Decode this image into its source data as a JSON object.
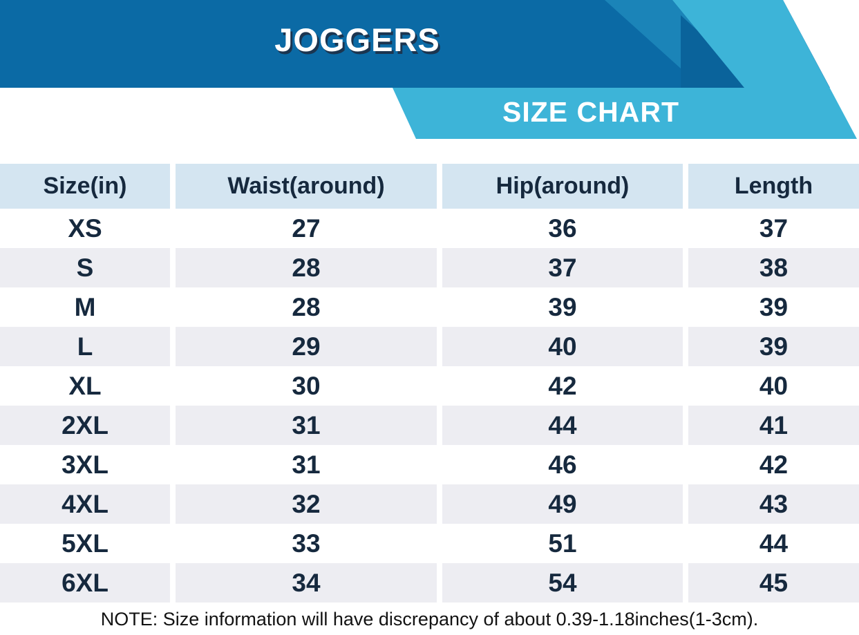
{
  "header": {
    "title": "JOGGERS",
    "ribbon_label": "SIZE CHART",
    "colors": {
      "banner_blue": "#0b6aa5",
      "stripe_light": "#1b84b8",
      "stripe_dark": "#0a639b",
      "ribbon_cyan": "#3db4d8",
      "title_shadow": "#1b3550"
    }
  },
  "table": {
    "columns": [
      "Size(in)",
      "Waist(around)",
      "Hip(around)",
      "Length"
    ],
    "rows": [
      [
        "XS",
        "27",
        "36",
        "37"
      ],
      [
        "S",
        "28",
        "37",
        "38"
      ],
      [
        "M",
        "28",
        "39",
        "39"
      ],
      [
        "L",
        "29",
        "40",
        "39"
      ],
      [
        "XL",
        "30",
        "42",
        "40"
      ],
      [
        "2XL",
        "31",
        "44",
        "41"
      ],
      [
        "3XL",
        "31",
        "46",
        "42"
      ],
      [
        "4XL",
        "32",
        "49",
        "43"
      ],
      [
        "5XL",
        "33",
        "51",
        "44"
      ],
      [
        "6XL",
        "34",
        "54",
        "45"
      ]
    ],
    "colors": {
      "header_bg": "#d4e5f1",
      "stripe_bg": "#ededf2",
      "text": "#16293e"
    }
  },
  "note": {
    "text": "NOTE: Size information will have discrepancy of about 0.39-1.18inches(1-3cm)."
  },
  "chart_data": {
    "type": "table",
    "title": "JOGGERS SIZE CHART",
    "columns": [
      "Size(in)",
      "Waist(around)",
      "Hip(around)",
      "Length"
    ],
    "rows": [
      {
        "size": "XS",
        "waist": 27,
        "hip": 36,
        "length": 37
      },
      {
        "size": "S",
        "waist": 28,
        "hip": 37,
        "length": 38
      },
      {
        "size": "M",
        "waist": 28,
        "hip": 39,
        "length": 39
      },
      {
        "size": "L",
        "waist": 29,
        "hip": 40,
        "length": 39
      },
      {
        "size": "XL",
        "waist": 30,
        "hip": 42,
        "length": 40
      },
      {
        "size": "2XL",
        "waist": 31,
        "hip": 44,
        "length": 41
      },
      {
        "size": "3XL",
        "waist": 31,
        "hip": 46,
        "length": 42
      },
      {
        "size": "4XL",
        "waist": 32,
        "hip": 49,
        "length": 43
      },
      {
        "size": "5XL",
        "waist": 33,
        "hip": 51,
        "length": 44
      },
      {
        "size": "6XL",
        "waist": 34,
        "hip": 54,
        "length": 45
      }
    ],
    "units": "inches",
    "note": "Size information will have discrepancy of about 0.39-1.18inches(1-3cm)."
  }
}
